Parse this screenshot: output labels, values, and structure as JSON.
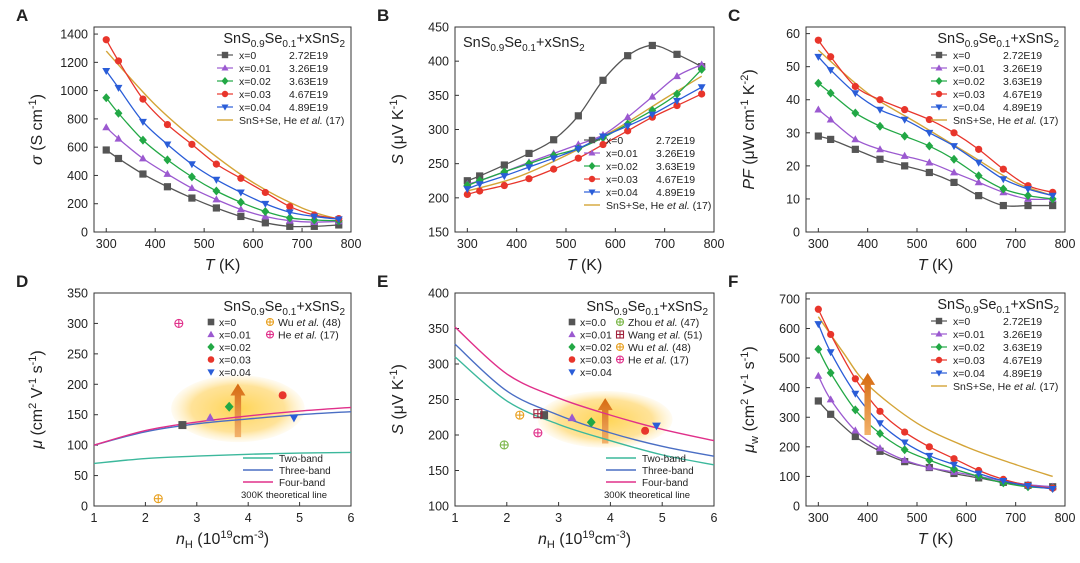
{
  "series_styles": [
    {
      "color": "#555555",
      "marker": "square"
    },
    {
      "color": "#9b59d0",
      "marker": "triangle-up"
    },
    {
      "color": "#22a845",
      "marker": "diamond"
    },
    {
      "color": "#e8352b",
      "marker": "circle"
    },
    {
      "color": "#2a5dd8",
      "marker": "triangle-down"
    }
  ],
  "ref_color": "#d4a437",
  "chart_data": [
    {
      "panel": "A",
      "type": "line",
      "title_main": "SnS",
      "title_s1": "0.9",
      "title_mid": "Se",
      "title_s2": "0.1",
      "title_end": "+xSnS",
      "title_s3": "2",
      "xlabel_italic": "T",
      "xlabel_rest": " (K)",
      "ylabel_italic": "σ",
      "ylabel_rest": " (S cm",
      "ylabel_sup": "-1",
      "ylabel_end": ")",
      "xlim": [
        275,
        800
      ],
      "ylim": [
        0,
        1450
      ],
      "xticks": [
        300,
        400,
        500,
        600,
        700,
        800
      ],
      "yticks": [
        0,
        200,
        400,
        600,
        800,
        1000,
        1200,
        1400
      ],
      "legend_position": "top-right",
      "x": [
        300,
        325,
        375,
        425,
        475,
        525,
        575,
        625,
        675,
        725,
        775
      ],
      "series": [
        {
          "name": "x=0",
          "carrier": "2.72E19",
          "values": [
            580,
            520,
            410,
            320,
            240,
            170,
            110,
            65,
            40,
            40,
            50
          ]
        },
        {
          "name": "x=0.01",
          "carrier": "3.26E19",
          "values": [
            740,
            660,
            520,
            410,
            310,
            230,
            160,
            110,
            80,
            70,
            75
          ]
        },
        {
          "name": "x=0.02",
          "carrier": "3.63E19",
          "values": [
            950,
            840,
            650,
            510,
            390,
            290,
            210,
            145,
            100,
            85,
            80
          ]
        },
        {
          "name": "x=0.03",
          "carrier": "4.67E19",
          "values": [
            1360,
            1210,
            940,
            760,
            620,
            480,
            380,
            280,
            180,
            120,
            95
          ]
        },
        {
          "name": "x=0.04",
          "carrier": "4.89E19",
          "values": [
            1140,
            1020,
            780,
            620,
            480,
            370,
            280,
            200,
            140,
            110,
            90
          ]
        }
      ],
      "reference": {
        "name": "SnS+Se, He ",
        "italic": "et al.",
        "cite": " (17)",
        "x": [
          300,
          400,
          500,
          600,
          700,
          775
        ],
        "values": [
          1280,
          900,
          600,
          350,
          170,
          90
        ]
      }
    },
    {
      "panel": "B",
      "type": "line",
      "title_main": "SnS",
      "title_s1": "0.9",
      "title_mid": "Se",
      "title_s2": "0.1",
      "title_end": "+xSnS",
      "title_s3": "2",
      "xlabel_italic": "T",
      "xlabel_rest": " (K)",
      "ylabel_italic": "S",
      "ylabel_rest": " (μV K",
      "ylabel_sup": "-1",
      "ylabel_end": ")",
      "xlim": [
        275,
        800
      ],
      "ylim": [
        150,
        450
      ],
      "xticks": [
        300,
        400,
        500,
        600,
        700,
        800
      ],
      "yticks": [
        150,
        200,
        250,
        300,
        350,
        400,
        450
      ],
      "legend_position": "bottom-right",
      "x": [
        300,
        325,
        375,
        425,
        475,
        525,
        575,
        625,
        675,
        725,
        775
      ],
      "series": [
        {
          "name": "x=0",
          "carrier": "2.72E19",
          "values": [
            225,
            232,
            248,
            265,
            285,
            320,
            372,
            408,
            423,
            410,
            392
          ]
        },
        {
          "name": "x=0.01",
          "carrier": "3.26E19",
          "values": [
            220,
            225,
            238,
            252,
            265,
            278,
            292,
            318,
            348,
            378,
            395
          ]
        },
        {
          "name": "x=0.02",
          "carrier": "3.63E19",
          "values": [
            218,
            225,
            238,
            250,
            262,
            272,
            288,
            308,
            328,
            352,
            388
          ]
        },
        {
          "name": "x=0.03",
          "carrier": "4.67E19",
          "values": [
            205,
            210,
            218,
            228,
            242,
            258,
            278,
            298,
            318,
            335,
            352
          ]
        },
        {
          "name": "x=0.04",
          "carrier": "4.89E19",
          "values": [
            213,
            220,
            232,
            245,
            258,
            272,
            290,
            305,
            322,
            342,
            362
          ]
        }
      ],
      "reference": {
        "name": "SnS+Se, He ",
        "italic": "et al.",
        "cite": " (17)",
        "x": [
          300,
          400,
          500,
          600,
          700,
          775
        ],
        "values": [
          210,
          230,
          262,
          300,
          345,
          378
        ]
      }
    },
    {
      "panel": "C",
      "type": "line",
      "title_main": "SnS",
      "title_s1": "0.9",
      "title_mid": "Se",
      "title_s2": "0.1",
      "title_end": "+xSnS",
      "title_s3": "2",
      "xlabel_italic": "T",
      "xlabel_rest": " (K)",
      "ylabel_italic": "PF",
      "ylabel_rest": " (μW cm",
      "ylabel_sup": "-1",
      "ylabel_end": " K",
      "ylabel_sup2": "-2",
      "ylabel_end2": ")",
      "xlim": [
        275,
        800
      ],
      "ylim": [
        0,
        62
      ],
      "xticks": [
        300,
        400,
        500,
        600,
        700,
        800
      ],
      "yticks": [
        0,
        10,
        20,
        30,
        40,
        50,
        60
      ],
      "legend_position": "top-right",
      "x": [
        300,
        325,
        375,
        425,
        475,
        525,
        575,
        625,
        675,
        725,
        775
      ],
      "series": [
        {
          "name": "x=0",
          "carrier": "2.72E19",
          "values": [
            29,
            28,
            25,
            22,
            20,
            18,
            15,
            11,
            8,
            8,
            8
          ]
        },
        {
          "name": "x=0.01",
          "carrier": "3.26E19",
          "values": [
            37,
            34,
            28,
            25,
            23,
            21,
            18,
            15,
            12,
            10,
            10
          ]
        },
        {
          "name": "x=0.02",
          "carrier": "3.63E19",
          "values": [
            45,
            42,
            36,
            32,
            29,
            26,
            22,
            17,
            13,
            11,
            10
          ]
        },
        {
          "name": "x=0.03",
          "carrier": "4.67E19",
          "values": [
            58,
            53,
            44,
            40,
            37,
            34,
            30,
            25,
            19,
            14,
            12
          ]
        },
        {
          "name": "x=0.04",
          "carrier": "4.89E19",
          "values": [
            53,
            49,
            42,
            37,
            34,
            30,
            26,
            21,
            16,
            13,
            11
          ]
        }
      ],
      "reference": {
        "name": "SnS+Se, He ",
        "italic": "et al.",
        "cite": " (17)",
        "x": [
          300,
          400,
          500,
          600,
          700,
          775
        ],
        "values": [
          55,
          42,
          33,
          24,
          15,
          11
        ]
      }
    },
    {
      "panel": "D",
      "type": "scatter",
      "title_main": "SnS",
      "title_s1": "0.9",
      "title_mid": "Se",
      "title_s2": "0.1",
      "title_end": "+xSnS",
      "title_s3": "2",
      "xlabel_italic": "n",
      "xlabel_sub": "H",
      "xlabel_rest": " (10",
      "xlabel_sup": "19",
      "xlabel_end": "cm",
      "xlabel_sup2": "-3",
      "xlabel_end2": ")",
      "ylabel_italic": "μ",
      "ylabel_rest": " (cm",
      "ylabel_sup": "2",
      "ylabel_end": " V",
      "ylabel_sup2": "-1",
      "ylabel_end2": " s",
      "ylabel_sup3": "-1",
      "ylabel_end3": ")",
      "xlim": [
        1,
        6
      ],
      "ylim": [
        0,
        350
      ],
      "xticks": [
        1,
        2,
        3,
        4,
        5,
        6
      ],
      "yticks": [
        0,
        50,
        100,
        150,
        200,
        250,
        300,
        350
      ],
      "points": [
        {
          "name": "x=0",
          "x": 2.72,
          "y": 133
        },
        {
          "name": "x=0.01",
          "x": 3.26,
          "y": 145
        },
        {
          "name": "x=0.02",
          "x": 3.63,
          "y": 163
        },
        {
          "name": "x=0.03",
          "x": 4.67,
          "y": 182
        },
        {
          "name": "x=0.04",
          "x": 4.89,
          "y": 145
        }
      ],
      "refs": [
        {
          "name": "Wu ",
          "italic": "et al.",
          "cite": " (48)",
          "marker": "plus-circle",
          "color": "#e8a020",
          "x": 2.25,
          "y": 12
        },
        {
          "name": "He ",
          "italic": "et al.",
          "cite": " (17)",
          "marker": "plus-circle",
          "color": "#e0308a",
          "x": 2.65,
          "y": 300
        }
      ],
      "theory": [
        {
          "name": "Two-band",
          "color": "#3cb89c",
          "x": [
            1,
            2,
            3,
            4,
            5,
            6
          ],
          "values": [
            70,
            78,
            82,
            85,
            87,
            88
          ]
        },
        {
          "name": "Three-band",
          "color": "#4a6ec4",
          "x": [
            1,
            2,
            3,
            4,
            5,
            6
          ],
          "values": [
            100,
            122,
            135,
            143,
            150,
            155
          ]
        },
        {
          "name": "Four-band",
          "color": "#e0308a",
          "x": [
            1,
            2,
            3,
            4,
            5,
            6
          ],
          "values": [
            100,
            124,
            138,
            148,
            156,
            162
          ]
        }
      ],
      "theory_note": "300K theoretical line",
      "highlight": {
        "cx": 3.8,
        "cy": 160,
        "rx": 1.3,
        "ry": 55
      }
    },
    {
      "panel": "E",
      "type": "scatter",
      "title_main": "SnS",
      "title_s1": "0.9",
      "title_mid": "Se",
      "title_s2": "0.1",
      "title_end": "+xSnS",
      "title_s3": "2",
      "xlabel_italic": "n",
      "xlabel_sub": "H",
      "xlabel_rest": " (10",
      "xlabel_sup": "19",
      "xlabel_end": "cm",
      "xlabel_sup2": "-3",
      "xlabel_end2": ")",
      "ylabel_italic": "S",
      "ylabel_rest": " (μV K",
      "ylabel_sup": "-1",
      "ylabel_end": ")",
      "xlim": [
        1,
        6
      ],
      "ylim": [
        100,
        400
      ],
      "xticks": [
        1,
        2,
        3,
        4,
        5,
        6
      ],
      "yticks": [
        100,
        150,
        200,
        250,
        300,
        350,
        400
      ],
      "points": [
        {
          "name": "x=0.0",
          "x": 2.72,
          "y": 228
        },
        {
          "name": "x=0.01",
          "x": 3.26,
          "y": 224
        },
        {
          "name": "x=0.02",
          "x": 3.63,
          "y": 218
        },
        {
          "name": "x=0.03",
          "x": 4.67,
          "y": 206
        },
        {
          "name": "x=0.04",
          "x": 4.89,
          "y": 213
        }
      ],
      "refs": [
        {
          "name": "Zhou ",
          "italic": "et al.",
          "cite": " (47)",
          "marker": "plus-circle",
          "color": "#7ab648",
          "x": 1.95,
          "y": 186
        },
        {
          "name": "Wang ",
          "italic": "et al.",
          "cite": " (51)",
          "marker": "plus-square",
          "color": "#a0203a",
          "x": 2.6,
          "y": 230
        },
        {
          "name": "Wu ",
          "italic": "et al.",
          "cite": " (48)",
          "marker": "plus-circle",
          "color": "#e8a020",
          "x": 2.25,
          "y": 228
        },
        {
          "name": "He ",
          "italic": "et al.",
          "cite": " (17)",
          "marker": "plus-circle",
          "color": "#e0308a",
          "x": 2.6,
          "y": 203
        }
      ],
      "theory": [
        {
          "name": "Two-band",
          "color": "#3cb89c",
          "x": [
            1,
            2,
            3,
            4,
            5,
            6
          ],
          "values": [
            310,
            248,
            215,
            192,
            172,
            158
          ]
        },
        {
          "name": "Three-band",
          "color": "#4a6ec4",
          "x": [
            1,
            2,
            3,
            4,
            5,
            6
          ],
          "values": [
            328,
            262,
            228,
            203,
            184,
            170
          ]
        },
        {
          "name": "Four-band",
          "color": "#e0308a",
          "x": [
            1,
            2,
            3,
            4,
            5,
            6
          ],
          "values": [
            352,
            286,
            252,
            228,
            208,
            192
          ]
        }
      ],
      "theory_note": "300K theoretical line",
      "highlight": {
        "cx": 3.9,
        "cy": 222,
        "rx": 1.3,
        "ry": 40
      }
    },
    {
      "panel": "F",
      "type": "line",
      "title_main": "SnS",
      "title_s1": "0.9",
      "title_mid": "Se",
      "title_s2": "0.1",
      "title_end": "+xSnS",
      "title_s3": "2",
      "xlabel_italic": "T",
      "xlabel_rest": " (K)",
      "ylabel_italic": "μ",
      "ylabel_sub": "w",
      "ylabel_rest": " (cm",
      "ylabel_sup": "2",
      "ylabel_end": " V",
      "ylabel_sup2": "-1",
      "ylabel_end2": " s",
      "ylabel_sup3": "-1",
      "ylabel_end3": ")",
      "xlim": [
        275,
        800
      ],
      "ylim": [
        0,
        720
      ],
      "xticks": [
        300,
        400,
        500,
        600,
        700,
        800
      ],
      "yticks": [
        0,
        100,
        200,
        300,
        400,
        500,
        600,
        700
      ],
      "legend_position": "top-right",
      "x": [
        300,
        325,
        375,
        425,
        475,
        525,
        575,
        625,
        675,
        725,
        775
      ],
      "series": [
        {
          "name": "x=0",
          "carrier": "2.72E19",
          "values": [
            355,
            310,
            235,
            185,
            150,
            130,
            110,
            95,
            80,
            70,
            65
          ]
        },
        {
          "name": "x=0.01",
          "carrier": "3.26E19",
          "values": [
            440,
            360,
            255,
            195,
            155,
            130,
            115,
            100,
            85,
            72,
            65
          ]
        },
        {
          "name": "x=0.02",
          "carrier": "3.63E19",
          "values": [
            530,
            450,
            325,
            245,
            190,
            155,
            125,
            100,
            78,
            65,
            60
          ]
        },
        {
          "name": "x=0.03",
          "carrier": "4.67E19",
          "values": [
            665,
            580,
            430,
            320,
            250,
            200,
            160,
            120,
            90,
            70,
            60
          ]
        },
        {
          "name": "x=0.04",
          "carrier": "4.89E19",
          "values": [
            615,
            520,
            380,
            280,
            215,
            170,
            140,
            110,
            85,
            68,
            58
          ]
        }
      ],
      "reference": {
        "name": "SnS+Se, He ",
        "italic": "et al.",
        "cite": " (17)",
        "x": [
          300,
          350,
          400,
          500,
          600,
          700,
          775
        ],
        "values": [
          640,
          520,
          410,
          280,
          200,
          140,
          100
        ]
      },
      "highlight_arrow": {
        "x": 400,
        "y0": 240,
        "y1": 450
      }
    }
  ]
}
